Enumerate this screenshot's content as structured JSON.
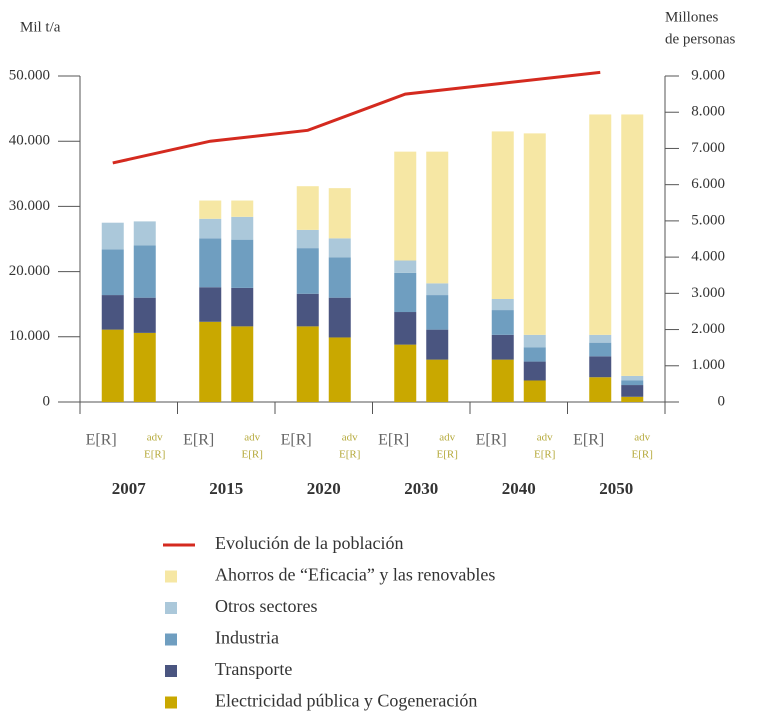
{
  "chart_data": {
    "type": "stacked-bar-line",
    "y_label": "Mil t/a",
    "y2_label": [
      "Millones",
      "de personas"
    ],
    "categories": [
      "2007",
      "2015",
      "2020",
      "2030",
      "2040",
      "2050"
    ],
    "scenarios": [
      {
        "lines": [
          "E[R]"
        ],
        "color": "#666666"
      },
      {
        "lines": [
          "adv",
          "E[R]"
        ],
        "color": "#b5a93a"
      }
    ],
    "ylim": [
      0,
      50000
    ],
    "yticks": [
      0,
      {
        "value": 10000,
        "label": "10.000"
      },
      {
        "value": 20000,
        "label": "20.000"
      },
      {
        "value": 30000,
        "label": "30.000"
      },
      {
        "value": 40000,
        "label": "40.000"
      },
      {
        "value": 50000,
        "label": "50.000"
      }
    ],
    "y2lim": [
      0,
      9000
    ],
    "y2ticks": [
      0,
      {
        "value": 1000,
        "label": "1.000"
      },
      {
        "value": 2000,
        "label": "2.000"
      },
      {
        "value": 3000,
        "label": "3.000"
      },
      {
        "value": 4000,
        "label": "4.000"
      },
      {
        "value": 5000,
        "label": "5.000"
      },
      {
        "value": 6000,
        "label": "6.000"
      },
      {
        "value": 7000,
        "label": "7.000"
      },
      {
        "value": 8000,
        "label": "8.000"
      },
      {
        "value": 9000,
        "label": "9.000"
      }
    ],
    "series": [
      {
        "name": "Evolución de la población",
        "color": "#d42a1f",
        "type": "line",
        "axis": "y2",
        "values": [
          6600,
          7200,
          7500,
          8500,
          8800,
          9100
        ]
      },
      {
        "name": "Ahorros de “Eficacia” y las renovables",
        "color": "#f6e7a4",
        "values": [
          [
            0,
            0
          ],
          [
            2800,
            2500
          ],
          [
            6700,
            7700
          ],
          [
            16700,
            20200
          ],
          [
            25700,
            30900
          ],
          [
            33800,
            40100
          ]
        ]
      },
      {
        "name": "Otros sectores",
        "color": "#abc8da",
        "values": [
          [
            4100,
            3700
          ],
          [
            3000,
            3500
          ],
          [
            2800,
            2900
          ],
          [
            1900,
            1800
          ],
          [
            1700,
            1900
          ],
          [
            1200,
            700
          ]
        ]
      },
      {
        "name": "Industria",
        "color": "#6f9ec0",
        "values": [
          [
            7000,
            8000
          ],
          [
            7500,
            7400
          ],
          [
            7000,
            6200
          ],
          [
            6000,
            5300
          ],
          [
            3800,
            2200
          ],
          [
            2100,
            700
          ]
        ]
      },
      {
        "name": "Transporte",
        "color": "#4a5580",
        "values": [
          [
            5300,
            5400
          ],
          [
            5300,
            5900
          ],
          [
            5000,
            6100
          ],
          [
            5000,
            4600
          ],
          [
            3800,
            2900
          ],
          [
            3200,
            1800
          ]
        ]
      },
      {
        "name": "Electricidad pública y Cogeneración",
        "color": "#c9a800",
        "values": [
          [
            11100,
            10600
          ],
          [
            12300,
            11600
          ],
          [
            11600,
            9900
          ],
          [
            8800,
            6500
          ],
          [
            6500,
            3300
          ],
          [
            3800,
            800
          ]
        ]
      }
    ]
  }
}
